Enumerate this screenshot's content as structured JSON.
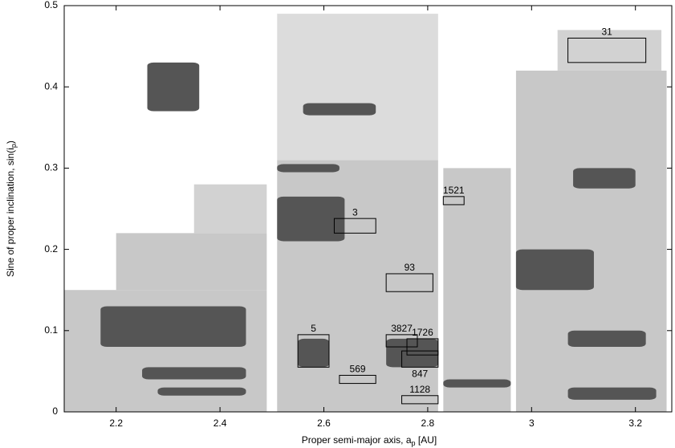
{
  "chart_data": {
    "type": "scatter-regions",
    "xlabel": {
      "text": "Proper semi-major axis, a",
      "sub": "p",
      "after": " [AU]"
    },
    "ylabel": {
      "text": "Sine of proper inclination, sin(i",
      "sub": "p",
      "after": ")"
    },
    "xlim": [
      2.1,
      3.27
    ],
    "ylim": [
      0,
      0.5
    ],
    "xticks": [
      2.2,
      2.4,
      2.6,
      2.8,
      3,
      3.2
    ],
    "yticks": [
      0,
      0.1,
      0.2,
      0.3,
      0.4,
      0.5
    ],
    "regions": [
      {
        "color": "#c8c8c8",
        "x": [
          2.1,
          2.49
        ],
        "y": [
          0,
          0.15
        ]
      },
      {
        "color": "#c8c8c8",
        "x": [
          2.2,
          2.49
        ],
        "y": [
          0.15,
          0.22
        ]
      },
      {
        "color": "#d2d2d2",
        "x": [
          2.35,
          2.49
        ],
        "y": [
          0.22,
          0.28
        ]
      },
      {
        "color": "#c8c8c8",
        "x": [
          2.51,
          2.82
        ],
        "y": [
          0,
          0.31
        ]
      },
      {
        "color": "#dcdcdc",
        "x": [
          2.51,
          2.82
        ],
        "y": [
          0.31,
          0.49
        ]
      },
      {
        "color": "#c8c8c8",
        "x": [
          2.83,
          2.96
        ],
        "y": [
          0,
          0.3
        ]
      },
      {
        "color": "#c8c8c8",
        "x": [
          2.97,
          3.26
        ],
        "y": [
          0,
          0.42
        ]
      },
      {
        "color": "#d2d2d2",
        "x": [
          3.05,
          3.25
        ],
        "y": [
          0.42,
          0.47
        ]
      }
    ],
    "families": [
      {
        "color": "#555555",
        "x": [
          2.26,
          2.36
        ],
        "y": [
          0.37,
          0.43
        ]
      },
      {
        "color": "#555555",
        "x": [
          2.17,
          2.45
        ],
        "y": [
          0.08,
          0.13
        ]
      },
      {
        "color": "#555555",
        "x": [
          2.25,
          2.45
        ],
        "y": [
          0.04,
          0.055
        ]
      },
      {
        "color": "#555555",
        "x": [
          2.28,
          2.45
        ],
        "y": [
          0.02,
          0.03
        ]
      },
      {
        "color": "#555555",
        "x": [
          2.51,
          2.64
        ],
        "y": [
          0.21,
          0.265
        ]
      },
      {
        "color": "#555555",
        "x": [
          2.56,
          2.7
        ],
        "y": [
          0.365,
          0.38
        ]
      },
      {
        "color": "#555555",
        "x": [
          2.51,
          2.63
        ],
        "y": [
          0.295,
          0.305
        ]
      },
      {
        "color": "#555555",
        "x": [
          2.97,
          3.12
        ],
        "y": [
          0.15,
          0.2
        ]
      },
      {
        "color": "#555555",
        "x": [
          3.07,
          3.24
        ],
        "y": [
          0.015,
          0.03
        ]
      },
      {
        "color": "#555555",
        "x": [
          3.07,
          3.22
        ],
        "y": [
          0.08,
          0.1
        ]
      },
      {
        "color": "#555555",
        "x": [
          3.08,
          3.2
        ],
        "y": [
          0.275,
          0.3
        ]
      },
      {
        "color": "#555555",
        "x": [
          2.83,
          2.96
        ],
        "y": [
          0.03,
          0.04
        ]
      },
      {
        "color": "#555555",
        "x": [
          2.55,
          2.61
        ],
        "y": [
          0.055,
          0.09
        ]
      },
      {
        "color": "#555555",
        "x": [
          2.72,
          2.82
        ],
        "y": [
          0.055,
          0.09
        ]
      }
    ],
    "boxes": [
      {
        "label": "31",
        "x": [
          3.07,
          3.22
        ],
        "y": [
          0.43,
          0.46
        ]
      },
      {
        "label": "1521",
        "x": [
          2.83,
          2.87
        ],
        "y": [
          0.255,
          0.265
        ]
      },
      {
        "label": "3",
        "x": [
          2.62,
          2.7
        ],
        "y": [
          0.22,
          0.238
        ]
      },
      {
        "label": "93",
        "x": [
          2.72,
          2.81
        ],
        "y": [
          0.148,
          0.17
        ]
      },
      {
        "label": "5",
        "x": [
          2.55,
          2.61
        ],
        "y": [
          0.055,
          0.095
        ]
      },
      {
        "label": "3827",
        "x": [
          2.72,
          2.78
        ],
        "y": [
          0.08,
          0.095
        ]
      },
      {
        "label": "1726",
        "x": [
          2.76,
          2.82
        ],
        "y": [
          0.07,
          0.09
        ]
      },
      {
        "label": "847",
        "x": [
          2.75,
          2.82
        ],
        "y": [
          0.055,
          0.075
        ],
        "label_position": "below"
      },
      {
        "label": "569",
        "x": [
          2.63,
          2.7
        ],
        "y": [
          0.035,
          0.045
        ]
      },
      {
        "label": "1128",
        "x": [
          2.75,
          2.82
        ],
        "y": [
          0.01,
          0.02
        ]
      }
    ]
  }
}
